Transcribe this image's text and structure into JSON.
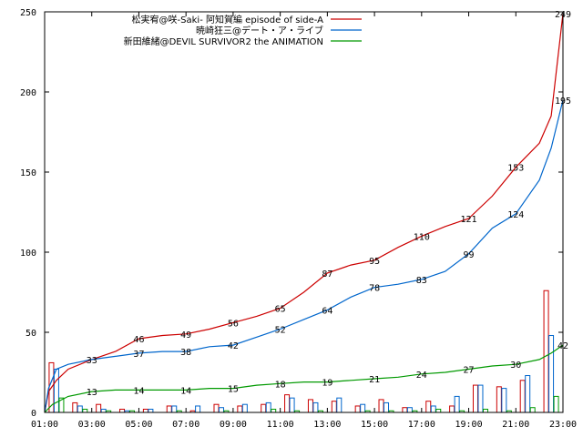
{
  "chart_data": {
    "type": "line",
    "title": "",
    "xlabel": "",
    "ylabel": "",
    "ylim": [
      0,
      250
    ],
    "yticks": [
      0,
      50,
      100,
      150,
      200,
      250
    ],
    "xlim": [
      "01:00",
      "23:00"
    ],
    "xticks": [
      "01:00",
      "03:00",
      "05:00",
      "07:00",
      "09:00",
      "11:00",
      "13:00",
      "15:00",
      "17:00",
      "19:00",
      "21:00",
      "23:00"
    ],
    "grid": false,
    "legend_position": "top-right",
    "series": [
      {
        "name": "松実宥@咲-Saki- 阿知賀編 episode of side-A",
        "color": "#cc0000",
        "cumulative": [
          {
            "x": "01:00",
            "y": 0
          },
          {
            "x": "01:10",
            "y": 13
          },
          {
            "x": "01:30",
            "y": 20
          },
          {
            "x": "02:00",
            "y": 27
          },
          {
            "x": "03:00",
            "y": 33
          },
          {
            "x": "04:00",
            "y": 38
          },
          {
            "x": "05:00",
            "y": 46
          },
          {
            "x": "06:00",
            "y": 48
          },
          {
            "x": "07:00",
            "y": 49
          },
          {
            "x": "08:00",
            "y": 52
          },
          {
            "x": "09:00",
            "y": 56
          },
          {
            "x": "10:00",
            "y": 60
          },
          {
            "x": "11:00",
            "y": 65
          },
          {
            "x": "12:00",
            "y": 75
          },
          {
            "x": "13:00",
            "y": 87
          },
          {
            "x": "14:00",
            "y": 92
          },
          {
            "x": "15:00",
            "y": 95
          },
          {
            "x": "16:00",
            "y": 103
          },
          {
            "x": "17:00",
            "y": 110
          },
          {
            "x": "18:00",
            "y": 116
          },
          {
            "x": "19:00",
            "y": 121
          },
          {
            "x": "20:00",
            "y": 135
          },
          {
            "x": "21:00",
            "y": 153
          },
          {
            "x": "22:00",
            "y": 168
          },
          {
            "x": "22:30",
            "y": 185
          },
          {
            "x": "23:00",
            "y": 249
          }
        ],
        "labels": [
          {
            "x": "03:00",
            "y": 33
          },
          {
            "x": "05:00",
            "y": 46
          },
          {
            "x": "07:00",
            "y": 49
          },
          {
            "x": "09:00",
            "y": 56
          },
          {
            "x": "11:00",
            "y": 65
          },
          {
            "x": "13:00",
            "y": 87
          },
          {
            "x": "15:00",
            "y": 95
          },
          {
            "x": "17:00",
            "y": 110
          },
          {
            "x": "19:00",
            "y": 121
          },
          {
            "x": "21:00",
            "y": 153
          },
          {
            "x": "23:00",
            "y": 249
          }
        ],
        "hourly": [
          31,
          6,
          5,
          2,
          2,
          4,
          1,
          5,
          4,
          5,
          11,
          8,
          7,
          4,
          8,
          3,
          7,
          4,
          17,
          16,
          20,
          76
        ]
      },
      {
        "name": "暁崎狂三@デート・ア・ライブ",
        "color": "#0066cc",
        "cumulative": [
          {
            "x": "01:00",
            "y": 0
          },
          {
            "x": "01:10",
            "y": 15
          },
          {
            "x": "01:30",
            "y": 27
          },
          {
            "x": "02:00",
            "y": 30
          },
          {
            "x": "03:00",
            "y": 33
          },
          {
            "x": "04:00",
            "y": 35
          },
          {
            "x": "05:00",
            "y": 37
          },
          {
            "x": "06:00",
            "y": 38
          },
          {
            "x": "07:00",
            "y": 38
          },
          {
            "x": "08:00",
            "y": 41
          },
          {
            "x": "09:00",
            "y": 42
          },
          {
            "x": "10:00",
            "y": 47
          },
          {
            "x": "11:00",
            "y": 52
          },
          {
            "x": "12:00",
            "y": 58
          },
          {
            "x": "13:00",
            "y": 64
          },
          {
            "x": "14:00",
            "y": 72
          },
          {
            "x": "15:00",
            "y": 78
          },
          {
            "x": "16:00",
            "y": 80
          },
          {
            "x": "17:00",
            "y": 83
          },
          {
            "x": "18:00",
            "y": 88
          },
          {
            "x": "19:00",
            "y": 99
          },
          {
            "x": "20:00",
            "y": 115
          },
          {
            "x": "21:00",
            "y": 124
          },
          {
            "x": "22:00",
            "y": 145
          },
          {
            "x": "22:30",
            "y": 165
          },
          {
            "x": "23:00",
            "y": 195
          }
        ],
        "labels": [
          {
            "x": "05:00",
            "y": 37
          },
          {
            "x": "07:00",
            "y": 38
          },
          {
            "x": "09:00",
            "y": 42
          },
          {
            "x": "11:00",
            "y": 52
          },
          {
            "x": "13:00",
            "y": 64
          },
          {
            "x": "15:00",
            "y": 78
          },
          {
            "x": "17:00",
            "y": 83
          },
          {
            "x": "19:00",
            "y": 99
          },
          {
            "x": "21:00",
            "y": 124
          },
          {
            "x": "23:00",
            "y": 195
          }
        ],
        "hourly": [
          27,
          4,
          2,
          1,
          2,
          4,
          4,
          3,
          5,
          6,
          9,
          6,
          9,
          5,
          6,
          3,
          4,
          10,
          17,
          15,
          23,
          48
        ]
      },
      {
        "name": "新田維緒@DEVIL SURVIVOR2 the ANIMATION",
        "color": "#009900",
        "cumulative": [
          {
            "x": "01:00",
            "y": 0
          },
          {
            "x": "01:20",
            "y": 5
          },
          {
            "x": "02:00",
            "y": 10
          },
          {
            "x": "03:00",
            "y": 13
          },
          {
            "x": "04:00",
            "y": 14
          },
          {
            "x": "05:00",
            "y": 14
          },
          {
            "x": "06:00",
            "y": 14
          },
          {
            "x": "07:00",
            "y": 14
          },
          {
            "x": "08:00",
            "y": 15
          },
          {
            "x": "09:00",
            "y": 15
          },
          {
            "x": "10:00",
            "y": 17
          },
          {
            "x": "11:00",
            "y": 18
          },
          {
            "x": "12:00",
            "y": 19
          },
          {
            "x": "13:00",
            "y": 19
          },
          {
            "x": "14:00",
            "y": 20
          },
          {
            "x": "15:00",
            "y": 21
          },
          {
            "x": "16:00",
            "y": 22
          },
          {
            "x": "17:00",
            "y": 24
          },
          {
            "x": "18:00",
            "y": 25
          },
          {
            "x": "19:00",
            "y": 27
          },
          {
            "x": "20:00",
            "y": 29
          },
          {
            "x": "21:00",
            "y": 30
          },
          {
            "x": "22:00",
            "y": 33
          },
          {
            "x": "22:30",
            "y": 37
          },
          {
            "x": "23:00",
            "y": 42
          }
        ],
        "labels": [
          {
            "x": "03:00",
            "y": 13
          },
          {
            "x": "05:00",
            "y": 14
          },
          {
            "x": "07:00",
            "y": 14
          },
          {
            "x": "09:00",
            "y": 15
          },
          {
            "x": "11:00",
            "y": 18
          },
          {
            "x": "13:00",
            "y": 19
          },
          {
            "x": "15:00",
            "y": 21
          },
          {
            "x": "17:00",
            "y": 24
          },
          {
            "x": "19:00",
            "y": 27
          },
          {
            "x": "21:00",
            "y": 30
          },
          {
            "x": "23:00",
            "y": 42
          }
        ],
        "hourly": [
          9,
          2,
          1,
          1,
          0,
          1,
          0,
          1,
          0,
          2,
          1,
          1,
          0,
          1,
          1,
          1,
          2,
          1,
          2,
          1,
          3,
          10
        ]
      }
    ]
  }
}
